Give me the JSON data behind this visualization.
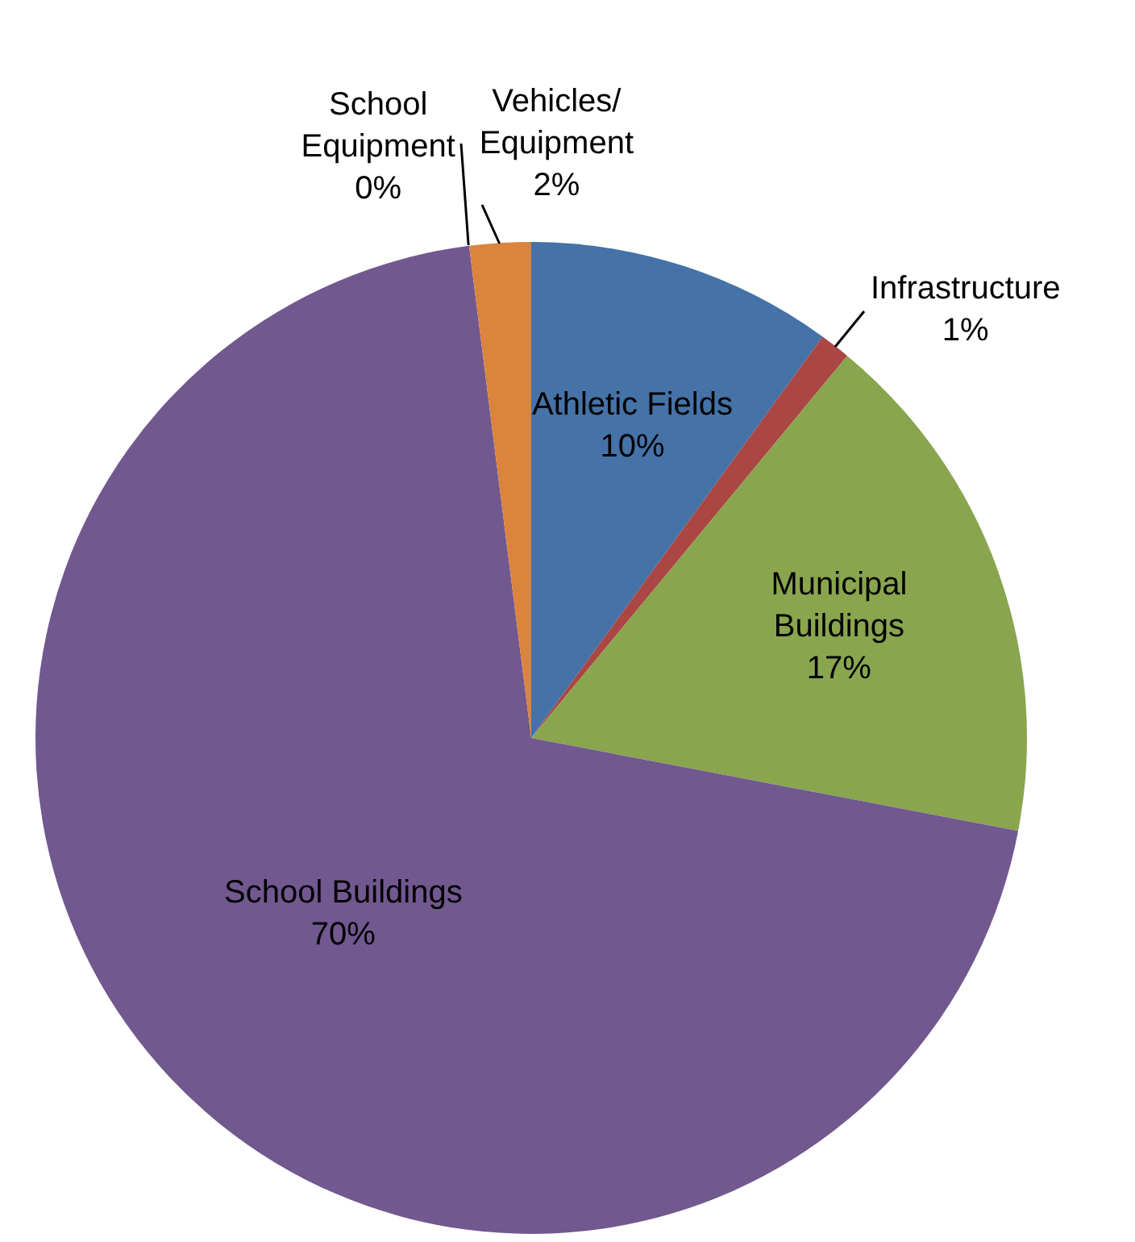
{
  "chart_data": {
    "type": "pie",
    "categories": [
      "Athletic Fields",
      "Infrastructure",
      "Municipal Buildings",
      "School Buildings",
      "School Equipment",
      "Vehicles/Equipment"
    ],
    "values": [
      10,
      1,
      17,
      70,
      0,
      2
    ],
    "value_labels": [
      "10%",
      "1%",
      "17%",
      "70%",
      "0%",
      "2%"
    ],
    "colors": [
      "#4572a7",
      "#aa4643",
      "#89a54e",
      "#71588f",
      "#4198af",
      "#db843d"
    ],
    "legend": false
  }
}
